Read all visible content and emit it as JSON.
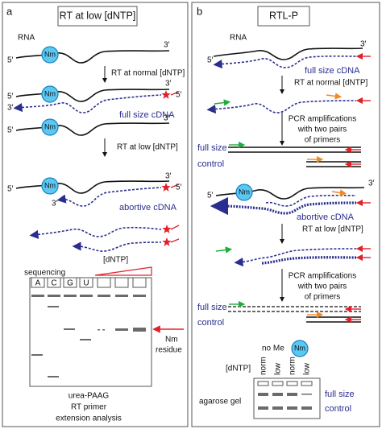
{
  "panel_a": {
    "letter": "a",
    "title": "RT at low [dNTP]",
    "rna_label": "RNA",
    "strands": [
      {
        "five": "5′",
        "three": "3′",
        "nm": "Nm"
      },
      {
        "five": "5′",
        "three": "3′",
        "nm": "Nm",
        "cdna_three": "3′",
        "cdna_five": "5′"
      },
      {
        "five": "5′",
        "three": "3′",
        "nm": "Nm"
      },
      {
        "five": "5′",
        "three": "3′",
        "nm": "Nm",
        "cdna_three": "3′",
        "cdna_five": "5′"
      }
    ],
    "step_1": "RT at normal [dNTP]",
    "product_1": "full size cDNA",
    "step_2": "RT at low [dNTP]",
    "product_2": "abortive cDNA",
    "gel": {
      "sequencing": "sequencing",
      "dntp": "[dNTP]",
      "lanes": [
        "A",
        "C",
        "G",
        "U"
      ],
      "nm_residue": [
        "Nm",
        "residue"
      ],
      "caption": [
        "urea-PAAG",
        "RT primer",
        "extension analysis"
      ]
    }
  },
  "panel_b": {
    "letter": "b",
    "title": "RTL-P",
    "rna_label": "RNA",
    "strands": [
      {
        "five": "5′",
        "three": "3′"
      },
      {
        "five": "5′",
        "three": "3′",
        "nm": "Nm"
      }
    ],
    "product_1": "full size cDNA",
    "step_1": "RT at normal [dNTP]",
    "pcr_1": [
      "PCR amplifications",
      "with two pairs",
      "of primers"
    ],
    "full_size_1": "full size",
    "control_1": "control",
    "product_2": "abortive cDNA",
    "step_2": "RT at low [dNTP]",
    "pcr_2": [
      "PCR amplifications",
      "with two pairs",
      "of primers"
    ],
    "full_size_2": "full size",
    "control_2": "control",
    "gel": {
      "no_me": "no Me",
      "nm": "Nm",
      "dntp": "[dNTP]",
      "lanes": [
        "norm",
        "low",
        "norm",
        "low"
      ],
      "agarose": "agarose gel",
      "full_size": "full size",
      "control": "control"
    }
  }
}
